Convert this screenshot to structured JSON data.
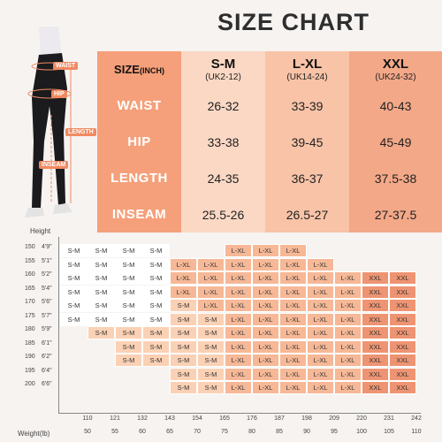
{
  "title": "SIZE CHART",
  "figure_labels": {
    "waist": "WAIST",
    "hip": "HIP",
    "length": "LENGTH",
    "inseam": "INSEAM"
  },
  "table": {
    "header": {
      "label": "SIZE",
      "unit": "(INCH)"
    },
    "columns": [
      {
        "name": "S-M",
        "uk": "(UK2-12)"
      },
      {
        "name": "L-XL",
        "uk": "(UK14-24)"
      },
      {
        "name": "XXL",
        "uk": "(UK24-32)"
      }
    ],
    "rows": [
      {
        "label": "WAIST",
        "values": [
          "26-32",
          "33-39",
          "40-43"
        ]
      },
      {
        "label": "HIP",
        "values": [
          "33-38",
          "39-45",
          "45-49"
        ]
      },
      {
        "label": "LENGTH",
        "values": [
          "24-35",
          "36-37",
          "37.5-38"
        ]
      },
      {
        "label": "INSEAM",
        "values": [
          "25.5-26",
          "26.5-27",
          "27-37.5"
        ]
      }
    ]
  },
  "grid": {
    "height_title": "Height",
    "weight_title": "Weight(lb)",
    "heights": [
      {
        "cm": "150",
        "ft": "4'9\""
      },
      {
        "cm": "155",
        "ft": "5'1\""
      },
      {
        "cm": "160",
        "ft": "5'2\""
      },
      {
        "cm": "165",
        "ft": "5'4\""
      },
      {
        "cm": "170",
        "ft": "5'6\""
      },
      {
        "cm": "175",
        "ft": "5'7\""
      },
      {
        "cm": "180",
        "ft": "5'9\""
      },
      {
        "cm": "185",
        "ft": "6'1\""
      },
      {
        "cm": "190",
        "ft": "6'2\""
      },
      {
        "cm": "195",
        "ft": "6'4\""
      },
      {
        "cm": "200",
        "ft": "6'6\""
      }
    ],
    "weights_lb": [
      "110",
      "121",
      "132",
      "143",
      "154",
      "165",
      "176",
      "187",
      "198",
      "209",
      "220",
      "231",
      "242"
    ],
    "weights_kg": [
      "50",
      "55",
      "60",
      "65",
      "70",
      "75",
      "80",
      "85",
      "90",
      "95",
      "100",
      "105",
      "110"
    ],
    "rows": [
      [
        "S-M",
        "S-M",
        "S-M",
        "S-M",
        "",
        "",
        "L-XL",
        "L-XL",
        "L-XL",
        "",
        "",
        "",
        ""
      ],
      [
        "S-M",
        "S-M",
        "S-M",
        "S-M",
        "L-XL",
        "L-XL",
        "L-XL",
        "L-XL",
        "L-XL",
        "L-XL",
        "",
        "",
        ""
      ],
      [
        "S-M",
        "S-M",
        "S-M",
        "S-M",
        "L-XL",
        "L-XL",
        "L-XL",
        "L-XL",
        "L-XL",
        "L-XL",
        "L-XL",
        "XXL",
        "XXL"
      ],
      [
        "S-M",
        "S-M",
        "S-M",
        "S-M",
        "L-XL",
        "L-XL",
        "L-XL",
        "L-XL",
        "L-XL",
        "L-XL",
        "L-XL",
        "XXL",
        "XXL"
      ],
      [
        "S-M",
        "S-M",
        "S-M",
        "S-M",
        "S-M",
        "L-XL",
        "L-XL",
        "L-XL",
        "L-XL",
        "L-XL",
        "L-XL",
        "XXL",
        "XXL"
      ],
      [
        "S-M",
        "S-M",
        "S-M",
        "S-M",
        "S-M",
        "S-M",
        "L-XL",
        "L-XL",
        "L-XL",
        "L-XL",
        "L-XL",
        "XXL",
        "XXL"
      ],
      [
        "",
        "S-M",
        "S-M",
        "S-M",
        "S-M",
        "S-M",
        "L-XL",
        "L-XL",
        "L-XL",
        "L-XL",
        "L-XL",
        "XXL",
        "XXL"
      ],
      [
        "",
        "",
        "S-M",
        "S-M",
        "S-M",
        "S-M",
        "L-XL",
        "L-XL",
        "L-XL",
        "L-XL",
        "L-XL",
        "XXL",
        "XXL"
      ],
      [
        "",
        "",
        "S-M",
        "S-M",
        "S-M",
        "S-M",
        "L-XL",
        "L-XL",
        "L-XL",
        "L-XL",
        "L-XL",
        "XXL",
        "XXL"
      ],
      [
        "",
        "",
        "",
        "",
        "S-M",
        "S-M",
        "L-XL",
        "L-XL",
        "L-XL",
        "L-XL",
        "L-XL",
        "XXL",
        "XXL"
      ],
      [
        "",
        "",
        "",
        "",
        "S-M",
        "S-M",
        "L-XL",
        "L-XL",
        "L-XL",
        "L-XL",
        "L-XL",
        "XXL",
        "XXL"
      ]
    ]
  },
  "colors": {
    "accent": "#f08a62",
    "header_bg": "#f5a07a",
    "col1": "#fbd8c4",
    "col2": "#f8c3a7",
    "col3": "#f3a888",
    "sm_light": "#fde6d5",
    "sm_mid": "#fbd1b5",
    "lxl": "#f6b896",
    "xxl": "#ee9472"
  }
}
